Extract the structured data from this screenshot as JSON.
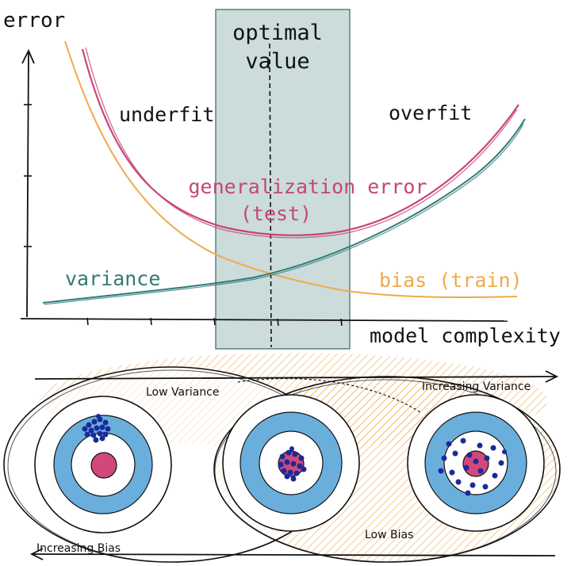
{
  "top": {
    "y_axis_label": "error",
    "x_axis_label": "model complexity",
    "optimal_label_line1": "optimal",
    "optimal_label_line2": "value",
    "underfit_label": "underfit",
    "overfit_label": "overfit",
    "generalization_label_line1": "generalization error",
    "generalization_label_line2": "(test)",
    "variance_label": "variance",
    "bias_label": "bias (train)"
  },
  "bottom": {
    "low_variance_label": "Low Variance",
    "increasing_variance_label": "Increasing Variance",
    "low_bias_label": "Low Bias",
    "increasing_bias_label": "Increasing Bias"
  },
  "colors": {
    "pink": "#c7457a",
    "teal": "#2f7a78",
    "orange": "#f0a94a",
    "band": "#b9d0cf",
    "target_blue": "#6aafdc",
    "bullseye": "#d0497a",
    "dots": "#1a2a9a",
    "ink": "#111111"
  }
}
